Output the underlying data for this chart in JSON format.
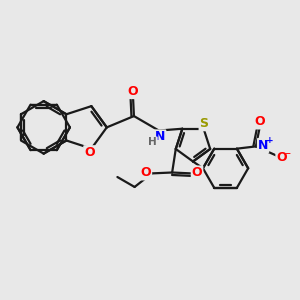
{
  "bg_color": "#e8e8e8",
  "bond_color": "#1a1a1a",
  "bond_width": 1.6,
  "atom_colors": {
    "O": "#ff0000",
    "N": "#0000ff",
    "S": "#999900",
    "H": "#666666",
    "C": "#1a1a1a"
  },
  "font_size": 8.5,
  "figsize": [
    3.0,
    3.0
  ],
  "dpi": 100
}
